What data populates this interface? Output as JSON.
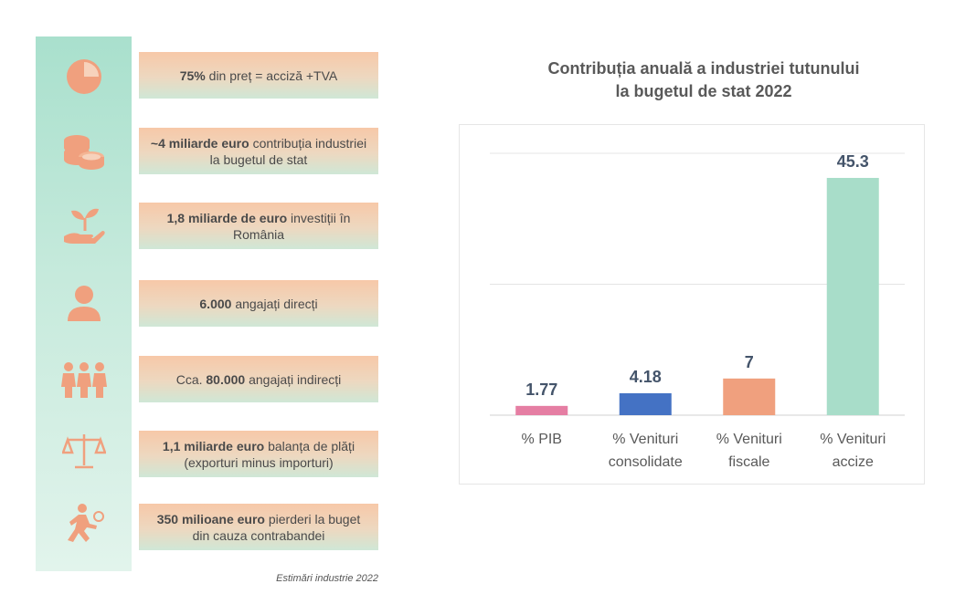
{
  "facts": [
    {
      "icon": "pie-chart-icon",
      "bold": "75%",
      "text": " din preț = acciză +TVA"
    },
    {
      "icon": "coins-icon",
      "bold": "~4 miliarde euro",
      "text": " contribuția industriei la bugetul de stat"
    },
    {
      "icon": "plant-hand-icon",
      "bold": "1,8 miliarde de euro",
      "text": " investiții în România"
    },
    {
      "icon": "person-icon",
      "bold": "6.000",
      "text": " angajați direcți"
    },
    {
      "icon": "people-group-icon",
      "pre": "Cca. ",
      "bold": "80.000",
      "text": " angajați indirecți"
    },
    {
      "icon": "scale-icon",
      "bold": "1,1 miliarde euro",
      "text": " balanța de plăți (exporturi minus importuri)"
    },
    {
      "icon": "runner-icon",
      "bold": "350 milioane euro",
      "text": " pierderi la buget din cauza contrabandei"
    }
  ],
  "source_note": "Estimări industrie 2022",
  "colors": {
    "icon": "#f0a07e",
    "bars": [
      "#e57ea3",
      "#4472c4",
      "#f0a07e",
      "#a8ddc9"
    ]
  },
  "chart_data": {
    "type": "bar",
    "title": [
      "Contribuția anuală a industriei tutunului",
      "la bugetul de stat 2022"
    ],
    "categories": [
      [
        "% PIB"
      ],
      [
        "% Venituri",
        "consolidate"
      ],
      [
        "%  Venituri",
        "fiscale"
      ],
      [
        "% Venituri",
        "accize"
      ]
    ],
    "values": [
      1.77,
      4.18,
      7,
      45.3
    ],
    "ylim": [
      0,
      50
    ],
    "grid": true,
    "legend": false
  }
}
